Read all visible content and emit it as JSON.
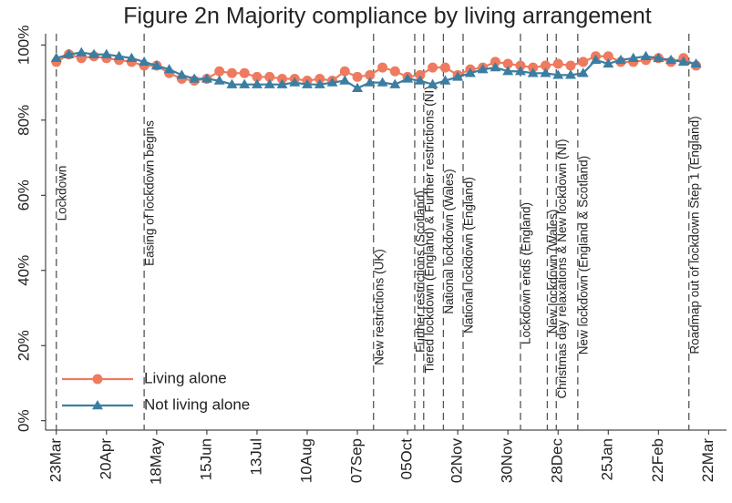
{
  "chart_data": {
    "type": "line",
    "title": "Figure 2n Majority compliance by living arrangement",
    "x": [
      0,
      7,
      14,
      21,
      28,
      35,
      42,
      49,
      56,
      63,
      70,
      77,
      84,
      91,
      98,
      105,
      112,
      119,
      126,
      133,
      140,
      147,
      154,
      161,
      168,
      175,
      182,
      189,
      196,
      203,
      210,
      217,
      224,
      231,
      238,
      245,
      252,
      259,
      266,
      273,
      280,
      287,
      294,
      301,
      308,
      315,
      322,
      329,
      336,
      343,
      350,
      357
    ],
    "series": [
      {
        "name": "Living alone",
        "color": "#ee7b5f",
        "marker": "circle",
        "values": [
          95.5,
          97.5,
          96.5,
          97,
          96.5,
          96,
          95.5,
          94.5,
          94.5,
          92.5,
          91,
          90.5,
          91,
          93,
          92.5,
          92.5,
          91.5,
          91.5,
          91,
          91,
          90.5,
          91,
          90.5,
          93,
          91.5,
          92,
          94,
          93,
          91.5,
          92,
          94,
          94,
          92,
          93.5,
          94,
          95.5,
          95,
          94.5,
          94,
          94.5,
          95,
          94.5,
          95.5,
          97,
          97,
          95.5,
          95.5,
          96,
          96.5,
          95.5,
          96.5,
          94.5
        ]
      },
      {
        "name": "Not living alone",
        "color": "#3b7ea1",
        "marker": "triangle",
        "values": [
          96.5,
          97.5,
          98,
          97.5,
          97.5,
          97,
          96.5,
          95.5,
          94.5,
          93.5,
          92,
          91,
          91,
          90.5,
          89.5,
          89.5,
          89.5,
          89.5,
          89.5,
          90,
          89.5,
          89.5,
          90,
          90.5,
          88.5,
          90,
          90,
          89.5,
          91,
          90.5,
          89.5,
          90.5,
          91.5,
          92.5,
          93.5,
          94,
          93,
          93,
          92.5,
          92.5,
          92,
          92,
          92.5,
          96,
          95,
          96,
          96.5,
          97,
          96.5,
          96,
          95.5,
          95
        ]
      }
    ],
    "xlim": [
      -6,
      374
    ],
    "xticks": [
      {
        "value": 0,
        "label": "23Mar"
      },
      {
        "value": 28,
        "label": "20Apr"
      },
      {
        "value": 56,
        "label": "18May"
      },
      {
        "value": 84,
        "label": "15Jun"
      },
      {
        "value": 112,
        "label": "13Jul"
      },
      {
        "value": 140,
        "label": "10Aug"
      },
      {
        "value": 168,
        "label": "07Sep"
      },
      {
        "value": 196,
        "label": "05Oct"
      },
      {
        "value": 224,
        "label": "02Nov"
      },
      {
        "value": 252,
        "label": "30Nov"
      },
      {
        "value": 280,
        "label": "28Dec"
      },
      {
        "value": 308,
        "label": "25Jan"
      },
      {
        "value": 336,
        "label": "22Feb"
      },
      {
        "value": 364,
        "label": "22Mar"
      }
    ],
    "ylim": [
      -2.5,
      103
    ],
    "yticks": [
      {
        "value": 0,
        "label": "0%"
      },
      {
        "value": 20,
        "label": "20%"
      },
      {
        "value": 40,
        "label": "40%"
      },
      {
        "value": 60,
        "label": "60%"
      },
      {
        "value": 80,
        "label": "80%"
      },
      {
        "value": 100,
        "label": "100%"
      }
    ],
    "annotations": [
      {
        "x": 0,
        "text": "Lockdown"
      },
      {
        "x": 49,
        "text": "Easing of lockdown begins"
      },
      {
        "x": 177,
        "text": "New restrictions (UK)"
      },
      {
        "x": 200,
        "text": "Further restrictions (Scotland)"
      },
      {
        "x": 205,
        "text": "Tiered lockdown (England) & Further restrictions (NI)"
      },
      {
        "x": 216,
        "text": "National lockdown (Wales)"
      },
      {
        "x": 227,
        "text": "National lockdown (England)"
      },
      {
        "x": 259,
        "text": "Lockdown ends (England)"
      },
      {
        "x": 274,
        "text": "New lockdown (Wales)"
      },
      {
        "x": 279,
        "text": "Christmas day relaxations & New lockdown (NI)"
      },
      {
        "x": 291,
        "text": "New lockdown (England & Scotland)"
      },
      {
        "x": 353,
        "text": "Roadmap out of lockdown Step 1 (England)"
      }
    ],
    "legend": "lower left"
  }
}
